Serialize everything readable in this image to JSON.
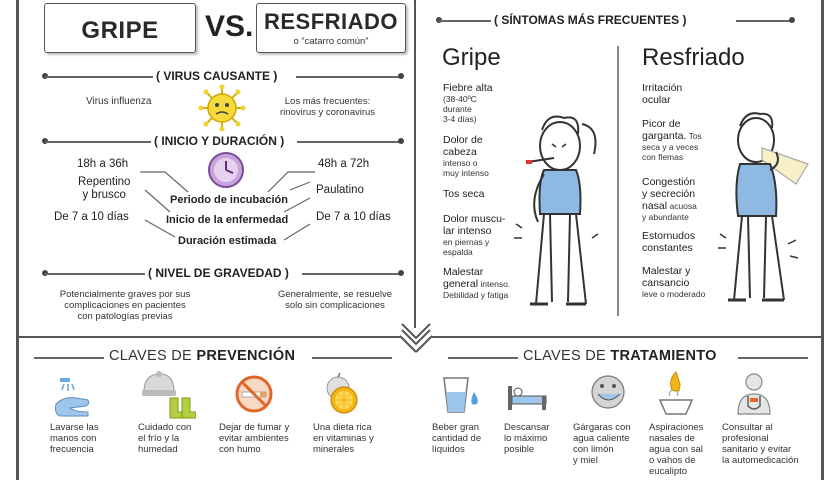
{
  "header": {
    "gripe": "GRIPE",
    "vs": "VS.",
    "resfriado": "RESFRIADO",
    "resfriado_sub": "o “catarro común”"
  },
  "virus": {
    "title": "( VIRUS CAUSANTE )",
    "gripe": "Virus influenza",
    "resfriado_line1": "Los más frecuentes:",
    "resfriado_line2": "rinovirus y coronavirus"
  },
  "inicio": {
    "title": "( INICIO Y DURACIÓN )",
    "gripe_incubacion": "18h a 36h",
    "gripe_inicio_1": "Repentino",
    "gripe_inicio_2": "y  brusco",
    "gripe_duracion": "De 7 a 10 días",
    "resfriado_incubacion": "48h a 72h",
    "resfriado_inicio": "Paulatino",
    "resfriado_duracion": "De 7 a 10 días",
    "label_incubacion": "Periodo de incubación",
    "label_inicio": "Inicio de la enfermedad",
    "label_duracion": "Duración estimada"
  },
  "gravedad": {
    "title": "( NIVEL DE GRAVEDAD )",
    "gripe_1": "Potencialmente graves por sus",
    "gripe_2": "complicaciones en pacientes",
    "gripe_3": "con patologías previas",
    "resfriado_1": "Generalmente, se resuelve",
    "resfriado_2": "solo sin complicaciones"
  },
  "sintomas": {
    "title": "( SÍNTOMAS MÁS FRECUENTES )",
    "gripe_head": "Gripe",
    "resfriado_head": "Resfriado",
    "gripe": [
      {
        "t": "Fiebre alta",
        "s1": "(38-40ºC",
        "s2": "durante",
        "s3": "3-4 días)"
      },
      {
        "t1": "Dolor de",
        "t2": "cabeza",
        "s1": "intenso o",
        "s2": "muy intenso"
      },
      {
        "t": "Tos seca"
      },
      {
        "t1": "Dolor muscu-",
        "t2": "lar intenso",
        "t3": "en piernas y",
        "t4": "espalda"
      },
      {
        "t1": "Malestar",
        "t2": "general",
        "s_inline": " intenso.",
        "s2": "Debilidad y fatiga"
      }
    ],
    "resfriado": [
      {
        "t1": "Irritación",
        "t2": "ocular"
      },
      {
        "t1": "Picor de",
        "t2": "garganta.",
        "s_inline": " Tos",
        "s2": "seca y a veces",
        "s3": "con flemas"
      },
      {
        "t1": "Congestión",
        "t2": "y secreción",
        "t3": "nasal",
        "s_inline": " acuosa",
        "s2": "y abundante"
      },
      {
        "t1": "Estornudos",
        "t2": "constantes"
      },
      {
        "t1": "Malestar y",
        "t2": "cansancio",
        "s2": "leve o moderado"
      }
    ]
  },
  "prevencion": {
    "pre": "CLAVES DE ",
    "bold": "PREVENCIÓN",
    "items": [
      {
        "l1": "Lavarse las",
        "l2": "manos con",
        "l3": "frecuencia"
      },
      {
        "l1": "Cuidado con",
        "l2": "el frío y la",
        "l3": "humedad"
      },
      {
        "l1": "Dejar de fumar y",
        "l2": "evitar ambientes",
        "l3": "con humo"
      },
      {
        "l1": "Una dieta rica",
        "l2": "en vitaminas y",
        "l3": "minerales"
      }
    ]
  },
  "tratamiento": {
    "pre": "CLAVES DE ",
    "bold": "TRATAMIENTO",
    "items": [
      {
        "l1": "Beber gran",
        "l2": "cantidad de",
        "l3": "líquidos"
      },
      {
        "l1": "Descansar",
        "l2": "lo máximo",
        "l3": "posible"
      },
      {
        "l1": "Gárgaras con",
        "l2": "agua caliente",
        "l3": "con limón",
        "l4": "y miel"
      },
      {
        "l1": "Aspiraciones",
        "l2": "nasales de",
        "l3": "agua con sal",
        "l4": "o vahos de",
        "l5": "eucalipto"
      },
      {
        "l1": "Consultar al",
        "l2": "profesional",
        "l3": "sanitario y evitar",
        "l4": "la automedicación"
      }
    ]
  }
}
